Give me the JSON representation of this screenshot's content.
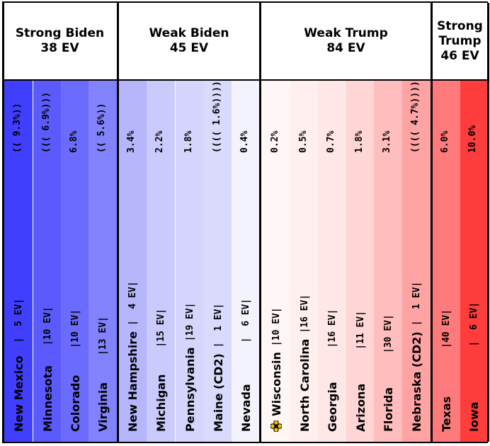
{
  "groups": [
    {
      "title_line1": "Strong Biden",
      "title_line2": "38 EV"
    },
    {
      "title_line1": "Weak Biden",
      "title_line2": "45 EV"
    },
    {
      "title_line1": "Weak Trump",
      "title_line2": "84 EV"
    },
    {
      "title_line1": "Strong",
      "title_line2": "Trump",
      "title_line3": "46 EV"
    }
  ],
  "chart_data": {
    "type": "table",
    "states": [
      {
        "name": "New Mexico",
        "ev": "|  5 EV|",
        "margin": "(( 9.3%))",
        "color": "#3f3ffd",
        "group": 0,
        "tipping_point": false
      },
      {
        "name": "Minnesota",
        "ev": "|10 EV|",
        "margin": "((( 6.9%)))",
        "color": "#5b5bfd",
        "group": 0,
        "tipping_point": false
      },
      {
        "name": "Colorado",
        "ev": "|10 EV|",
        "margin": "6.8%",
        "color": "#6b6bfd",
        "group": 0,
        "tipping_point": false
      },
      {
        "name": "Virginia",
        "ev": "|13 EV|",
        "margin": "(( 5.6%))",
        "color": "#8282fd",
        "group": 0,
        "tipping_point": false
      },
      {
        "name": "New Hampshire",
        "ev": "|  4 EV|",
        "margin": "3.4%",
        "color": "#b6b6fd",
        "group": 1,
        "tipping_point": false
      },
      {
        "name": "Michigan",
        "ev": "|15 EV|",
        "margin": "2.2%",
        "color": "#cacafd",
        "group": 1,
        "tipping_point": false
      },
      {
        "name": "Pennsylvania",
        "ev": "|19 EV|",
        "margin": "1.8%",
        "color": "#d5d5fd",
        "group": 1,
        "tipping_point": false
      },
      {
        "name": "Maine (CD2)",
        "ev": "|  1 EV|",
        "margin": "(((( 1.6%))))",
        "color": "#dadafd",
        "group": 1,
        "tipping_point": false
      },
      {
        "name": "Nevada",
        "ev": "|  6 EV|",
        "margin": "0.4%",
        "color": "#f3f3fd",
        "group": 1,
        "tipping_point": false
      },
      {
        "name": "Wisconsin",
        "ev": "|10 EV|",
        "margin": "0.2%",
        "color": "#fff6f6",
        "group": 2,
        "tipping_point": true
      },
      {
        "name": "North Carolina",
        "ev": "|16 EV|",
        "margin": "0.5%",
        "color": "#ffefef",
        "group": 2,
        "tipping_point": false
      },
      {
        "name": "Georgia",
        "ev": "|16 EV|",
        "margin": "0.7%",
        "color": "#ffe7e7",
        "group": 2,
        "tipping_point": false
      },
      {
        "name": "Arizona",
        "ev": "|11 EV|",
        "margin": "1.8%",
        "color": "#ffd5d5",
        "group": 2,
        "tipping_point": false
      },
      {
        "name": "Florida",
        "ev": "|30 EV|",
        "margin": "3.1%",
        "color": "#ffbdbd",
        "group": 2,
        "tipping_point": false
      },
      {
        "name": "Nebraska (CD2)",
        "ev": "|  1 EV|",
        "margin": "(((( 4.7%))))",
        "color": "#ffa3a3",
        "group": 2,
        "tipping_point": false
      },
      {
        "name": "Texas",
        "ev": "|40 EV|",
        "margin": "6.0%",
        "color": "#ff7b7b",
        "group": 3,
        "tipping_point": false
      },
      {
        "name": "Iowa",
        "ev": "|  6 EV|",
        "margin": "10.0%",
        "color": "#ff3d3d",
        "group": 3,
        "tipping_point": false
      }
    ]
  }
}
